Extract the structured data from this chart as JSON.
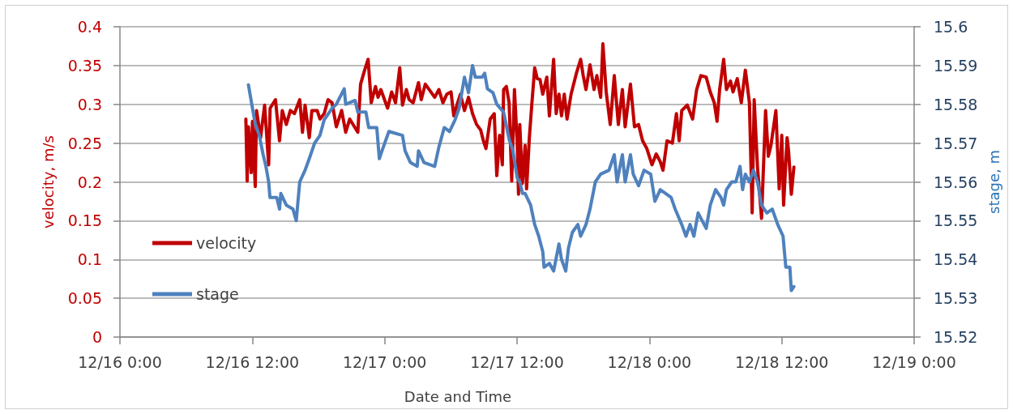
{
  "chart_data": {
    "type": "line",
    "xlabel": "Date and Time",
    "ylabel": "velocity, m/s",
    "y2label": "stage, m",
    "xlim": [
      "--12-16T00:00",
      "--12-19T00:00"
    ],
    "xticks": [
      {
        "value": "--12-16T00:00",
        "label": "12/16 0:00"
      },
      {
        "value": "--12-16T12:00",
        "label": "12/16 12:00"
      },
      {
        "value": "--12-17T00:00",
        "label": "12/17 0:00"
      },
      {
        "value": "--12-17T12:00",
        "label": "12/17 12:00"
      },
      {
        "value": "--12-18T00:00",
        "label": "12/18 0:00"
      },
      {
        "value": "--12-18T12:00",
        "label": "12/18 12:00"
      },
      {
        "value": "--12-19T00:00",
        "label": "12/19 0:00"
      }
    ],
    "ylim": [
      0,
      0.4
    ],
    "yticks": [
      0,
      0.05,
      0.1,
      0.15,
      0.2,
      0.25,
      0.3,
      0.35,
      0.4
    ],
    "y2lim": [
      15.52,
      15.6
    ],
    "y2ticks": [
      15.52,
      15.53,
      15.54,
      15.55,
      15.56,
      15.57,
      15.58,
      15.59,
      15.6
    ],
    "grid": "y",
    "legend": "bottom left",
    "marker": "none",
    "line_style": "solid",
    "series": [
      {
        "name": "velocity",
        "color": "#c00000",
        "x": [
          "--12-16T11:25",
          "--12-16T11:32",
          "--12-16T11:39",
          "--12-16T11:54",
          "--12-16T12:01",
          "--12-16T12:16",
          "--12-16T12:23",
          "--12-16T12:45",
          "--12-16T13:07",
          "--12-16T13:29",
          "--12-16T13:37",
          "--12-16T14:06",
          "--12-16T14:28",
          "--12-16T14:43",
          "--12-16T15:05",
          "--12-16T15:27",
          "--12-16T15:49",
          "--12-16T16:18",
          "--12-16T16:33",
          "--12-16T16:47",
          "--12-16T17:10",
          "--12-16T17:24",
          "--12-16T17:53",
          "--12-16T18:08",
          "--12-16T18:31",
          "--12-16T18:52",
          "--12-16T19:14",
          "--12-16T19:37",
          "--12-16T20:06",
          "--12-16T20:28",
          "--12-16T20:50",
          "--12-16T21:34",
          "--12-16T21:49",
          "--12-16T22:11",
          "--12-16T22:30",
          "--12-16T22:47",
          "--12-16T23:10",
          "--12-16T23:24",
          "--12-16T23:39",
          "--12-17T00:16",
          "--12-17T00:38",
          "--12-17T00:59",
          "--12-17T01:22",
          "--12-17T01:37",
          "--12-17T01:58",
          "--12-17T02:13",
          "--12-17T02:35",
          "--12-17T03:04",
          "--12-17T03:19",
          "--12-17T03:41",
          "--12-17T04:11",
          "--12-17T04:32",
          "--12-17T04:55",
          "--12-17T05:17",
          "--12-17T05:38",
          "--12-17T06:01",
          "--12-17T06:16",
          "--12-17T06:37",
          "--12-17T06:52",
          "--12-17T07:14",
          "--12-17T07:36",
          "--12-17T07:58",
          "--12-17T08:20",
          "--12-17T08:42",
          "--12-17T08:57",
          "--12-17T09:11",
          "--12-17T09:34",
          "--12-17T09:56",
          "--12-17T10:10",
          "--12-17T10:25",
          "--12-17T10:40",
          "--12-17T10:47",
          "--12-17T11:02",
          "--12-17T11:17",
          "--12-17T11:31",
          "--12-17T11:46",
          "--12-17T12:01",
          "--12-17T12:08",
          "--12-17T12:15",
          "--12-17T12:29",
          "--12-17T12:44",
          "--12-17T12:52",
          "--12-17T13:07",
          "--12-17T13:21",
          "--12-17T13:36",
          "--12-17T13:50",
          "--12-17T14:05",
          "--12-17T14:20",
          "--12-17T14:42",
          "--12-17T14:56",
          "--12-17T15:19",
          "--12-17T15:33",
          "--12-17T15:48",
          "--12-17T16:02",
          "--12-17T16:17",
          "--12-17T16:32",
          "--12-17T16:54",
          "--12-17T17:23",
          "--12-17T17:46",
          "--12-17T18:00",
          "--12-17T18:15",
          "--12-17T18:37",
          "--12-17T18:59",
          "--12-17T19:14",
          "--12-17T19:35",
          "--12-17T19:47",
          "--12-17T20:05",
          "--12-17T20:27",
          "--12-17T20:49",
          "--12-17T21:11",
          "--12-17T21:33",
          "--12-17T21:48",
          "--12-17T22:17",
          "--12-17T22:39",
          "--12-17T23:01",
          "--12-17T23:23",
          "--12-17T23:46",
          "--12-18T00:14",
          "--12-18T00:37",
          "--12-18T00:59",
          "--12-18T01:14",
          "--12-18T01:36",
          "--12-18T02:05",
          "--12-18T02:27",
          "--12-18T02:42",
          "--12-18T02:56",
          "--12-18T03:26",
          "--12-18T03:55",
          "--12-18T04:17",
          "--12-18T04:40",
          "--12-18T05:09",
          "--12-18T05:31",
          "--12-18T05:53",
          "--12-18T06:08",
          "--12-18T06:22",
          "--12-18T06:44",
          "--12-18T06:59",
          "--12-18T07:21",
          "--12-18T07:35",
          "--12-18T07:58",
          "--12-18T08:20",
          "--12-18T08:42",
          "--12-18T09:04",
          "--12-18T09:19",
          "--12-18T09:30",
          "--12-18T09:48",
          "--12-18T10:10",
          "--12-18T10:32",
          "--12-18T10:47",
          "--12-18T11:01",
          "--12-18T11:28",
          "--12-18T11:46",
          "--12-18T12:00",
          "--12-18T12:10",
          "--12-18T12:29",
          "--12-18T12:37",
          "--12-18T12:52",
          "--12-18T13:06"
        ],
        "values": [
          0.281,
          0.201,
          0.271,
          0.212,
          0.278,
          0.194,
          0.292,
          0.257,
          0.299,
          0.222,
          0.295,
          0.306,
          0.253,
          0.292,
          0.274,
          0.292,
          0.288,
          0.306,
          0.264,
          0.299,
          0.257,
          0.292,
          0.292,
          0.281,
          0.288,
          0.306,
          0.302,
          0.271,
          0.292,
          0.264,
          0.281,
          0.264,
          0.326,
          0.344,
          0.358,
          0.302,
          0.323,
          0.309,
          0.319,
          0.295,
          0.316,
          0.302,
          0.347,
          0.299,
          0.319,
          0.306,
          0.302,
          0.328,
          0.306,
          0.326,
          0.316,
          0.309,
          0.319,
          0.302,
          0.313,
          0.316,
          0.285,
          0.302,
          0.313,
          0.292,
          0.309,
          0.288,
          0.274,
          0.267,
          0.253,
          0.243,
          0.281,
          0.288,
          0.208,
          0.26,
          0.222,
          0.319,
          0.323,
          0.302,
          0.201,
          0.319,
          0.25,
          0.184,
          0.274,
          0.198,
          0.247,
          0.191,
          0.257,
          0.302,
          0.347,
          0.333,
          0.332,
          0.313,
          0.335,
          0.285,
          0.358,
          0.288,
          0.313,
          0.285,
          0.313,
          0.281,
          0.313,
          0.34,
          0.358,
          0.337,
          0.319,
          0.351,
          0.319,
          0.337,
          0.309,
          0.378,
          0.316,
          0.274,
          0.337,
          0.274,
          0.319,
          0.271,
          0.326,
          0.271,
          0.274,
          0.253,
          0.243,
          0.222,
          0.236,
          0.226,
          0.215,
          0.253,
          0.25,
          0.288,
          0.253,
          0.292,
          0.299,
          0.281,
          0.319,
          0.337,
          0.335,
          0.316,
          0.302,
          0.278,
          0.319,
          0.358,
          0.319,
          0.33,
          0.316,
          0.333,
          0.302,
          0.344,
          0.302,
          0.16,
          0.306,
          0.219,
          0.153,
          0.292,
          0.233,
          0.247,
          0.292,
          0.191,
          0.26,
          0.17,
          0.257,
          0.24,
          0.184,
          0.219
        ]
      },
      {
        "name": "stage",
        "color": "#4f81bd",
        "axis": "y2",
        "x": [
          "--12-16T11:39",
          "--12-16T12:01",
          "--12-16T12:16",
          "--12-16T12:38",
          "--12-16T12:59",
          "--12-16T13:14",
          "--12-16T13:29",
          "--12-16T13:36",
          "--12-16T14:13",
          "--12-16T14:28",
          "--12-16T14:35",
          "--12-16T15:05",
          "--12-16T15:41",
          "--12-16T15:59",
          "--12-16T16:18",
          "--12-16T16:47",
          "--12-16T17:10",
          "--12-16T17:39",
          "--12-16T18:08",
          "--12-16T18:31",
          "--12-16T19:14",
          "--12-16T19:37",
          "--12-16T20:20",
          "--12-16T20:28",
          "--12-16T21:19",
          "--12-16T21:34",
          "--12-16T22:18",
          "--12-16T22:33",
          "--12-16T23:17",
          "--12-16T23:31",
          "--12-16T23:53",
          "--12-17T00:23",
          "--12-17T01:37",
          "--12-17T01:51",
          "--12-17T02:20",
          "--12-17T02:57",
          "--12-17T03:04",
          "--12-17T03:34",
          "--12-17T04:32",
          "--12-17T04:55",
          "--12-17T05:24",
          "--12-17T05:53",
          "--12-17T06:23",
          "--12-17T06:45",
          "--12-17T07:14",
          "--12-17T07:36",
          "--12-17T07:58",
          "--12-17T08:13",
          "--12-17T08:50",
          "--12-17T09:04",
          "--12-17T09:19",
          "--12-17T09:49",
          "--12-17T10:10",
          "--12-17T10:47",
          "--12-17T11:17",
          "--12-17T11:38",
          "--12-17T12:01",
          "--12-17T12:15",
          "--12-17T12:30",
          "--12-17T12:44",
          "--12-17T13:14",
          "--12-17T13:36",
          "--12-17T13:58",
          "--12-17T14:20",
          "--12-17T14:27",
          "--12-17T14:56",
          "--12-17T15:19",
          "--12-17T15:48",
          "--12-17T16:02",
          "--12-17T16:25",
          "--12-17T16:40",
          "--12-17T17:01",
          "--12-17T17:31",
          "--12-17T17:46",
          "--12-17T18:15",
          "--12-17T18:37",
          "--12-17T19:06",
          "--12-17T19:35",
          "--12-17T20:20",
          "--12-17T20:49",
          "--12-17T21:04",
          "--12-17T21:33",
          "--12-17T21:48",
          "--12-17T22:17",
          "--12-17T22:32",
          "--12-17T23:01",
          "--12-17T23:31",
          "--12-18T00:07",
          "--12-18T00:30",
          "--12-18T00:59",
          "--12-18T01:58",
          "--12-18T02:20",
          "--12-18T02:56",
          "--12-18T03:19",
          "--12-18T03:41",
          "--12-18T04:02",
          "--12-18T04:25",
          "--12-18T04:47",
          "--12-18T05:09",
          "--12-18T05:31",
          "--12-18T06:00",
          "--12-18T06:29",
          "--12-18T06:44",
          "--12-18T06:59",
          "--12-18T07:28",
          "--12-18T07:50",
          "--12-18T08:13",
          "--12-18T08:27",
          "--12-18T08:42",
          "--12-18T09:04",
          "--12-18T09:26",
          "--12-18T09:48",
          "--12-18T10:10",
          "--12-18T10:39",
          "--12-18T11:08",
          "--12-18T11:38",
          "--12-18T12:07",
          "--12-18T12:22",
          "--12-18T12:44",
          "--12-18T12:52",
          "--12-18T13:06"
        ],
        "values": [
          15.585,
          15.579,
          15.575,
          15.572,
          15.567,
          15.564,
          15.56,
          15.556,
          15.556,
          15.553,
          15.557,
          15.554,
          15.553,
          15.55,
          15.56,
          15.563,
          15.566,
          15.57,
          15.572,
          15.576,
          15.579,
          15.58,
          15.584,
          15.58,
          15.581,
          15.578,
          15.578,
          15.574,
          15.574,
          15.566,
          15.569,
          15.573,
          15.572,
          15.568,
          15.565,
          15.564,
          15.568,
          15.565,
          15.564,
          15.569,
          15.574,
          15.573,
          15.576,
          15.579,
          15.587,
          15.583,
          15.59,
          15.587,
          15.587,
          15.588,
          15.584,
          15.583,
          15.58,
          15.578,
          15.571,
          15.568,
          15.561,
          15.56,
          15.557,
          15.557,
          15.554,
          15.549,
          15.546,
          15.542,
          15.538,
          15.539,
          15.537,
          15.544,
          15.54,
          15.537,
          15.543,
          15.547,
          15.549,
          15.546,
          15.549,
          15.553,
          15.56,
          15.562,
          15.563,
          15.567,
          15.56,
          15.567,
          15.56,
          15.567,
          15.562,
          15.559,
          15.563,
          15.562,
          15.555,
          15.558,
          15.556,
          15.553,
          15.549,
          15.546,
          15.549,
          15.546,
          15.552,
          15.55,
          15.548,
          15.554,
          15.558,
          15.556,
          15.554,
          15.558,
          15.56,
          15.56,
          15.564,
          15.558,
          15.562,
          15.56,
          15.563,
          15.56,
          15.554,
          15.552,
          15.553,
          15.549,
          15.546,
          15.538,
          15.538,
          15.532,
          15.533
        ]
      }
    ]
  }
}
